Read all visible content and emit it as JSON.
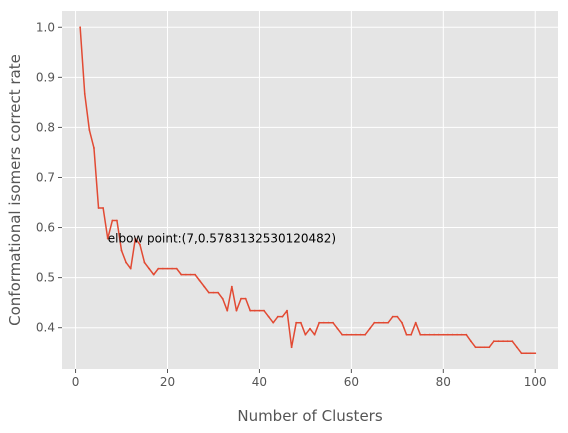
{
  "chart_data": {
    "type": "line",
    "title": "",
    "xlabel": "Number of Clusters",
    "ylabel": "Conformational isomers correct rate",
    "xlim": [
      -2.95,
      104.95
    ],
    "ylim": [
      0.3175,
      1.0325
    ],
    "xticks": [
      0,
      20,
      40,
      60,
      80,
      100
    ],
    "yticks": [
      0.4,
      0.5,
      0.6,
      0.7,
      0.8,
      0.9,
      1.0
    ],
    "ytick_labels": [
      "0.4",
      "0.5",
      "0.6",
      "0.7",
      "0.8",
      "0.9",
      "1.0"
    ],
    "grid": true,
    "style": "ggplot",
    "series": [
      {
        "color": "#E24A33",
        "x": [
          1,
          2,
          3,
          4,
          5,
          6,
          7,
          8,
          9,
          10,
          11,
          12,
          13,
          14,
          15,
          16,
          17,
          18,
          19,
          20,
          21,
          22,
          23,
          24,
          25,
          26,
          27,
          28,
          29,
          30,
          31,
          32,
          33,
          34,
          35,
          36,
          37,
          38,
          39,
          40,
          41,
          42,
          43,
          44,
          45,
          46,
          47,
          48,
          49,
          50,
          51,
          52,
          53,
          54,
          55,
          56,
          57,
          58,
          59,
          60,
          61,
          62,
          63,
          64,
          65,
          66,
          67,
          68,
          69,
          70,
          71,
          72,
          73,
          74,
          75,
          76,
          77,
          78,
          79,
          80,
          81,
          82,
          83,
          84,
          85,
          86,
          87,
          88,
          89,
          90,
          91,
          92,
          93,
          94,
          95,
          96,
          97,
          98,
          99,
          100
        ],
        "y": [
          1.0,
          0.867,
          0.795,
          0.759,
          0.639,
          0.639,
          0.578,
          0.614,
          0.614,
          0.554,
          0.53,
          0.518,
          0.578,
          0.566,
          0.53,
          0.518,
          0.506,
          0.518,
          0.518,
          0.518,
          0.518,
          0.518,
          0.506,
          0.506,
          0.506,
          0.506,
          0.494,
          0.482,
          0.47,
          0.47,
          0.47,
          0.458,
          0.434,
          0.482,
          0.434,
          0.458,
          0.458,
          0.434,
          0.434,
          0.434,
          0.434,
          0.422,
          0.41,
          0.422,
          0.422,
          0.434,
          0.361,
          0.41,
          0.41,
          0.386,
          0.398,
          0.386,
          0.41,
          0.41,
          0.41,
          0.41,
          0.398,
          0.386,
          0.386,
          0.386,
          0.386,
          0.386,
          0.386,
          0.398,
          0.41,
          0.41,
          0.41,
          0.41,
          0.422,
          0.422,
          0.41,
          0.386,
          0.386,
          0.41,
          0.386,
          0.386,
          0.386,
          0.386,
          0.386,
          0.386,
          0.386,
          0.386,
          0.386,
          0.386,
          0.386,
          0.373,
          0.361,
          0.361,
          0.361,
          0.361,
          0.373,
          0.373,
          0.373,
          0.373,
          0.373,
          0.361,
          0.349,
          0.349,
          0.349,
          0.349
        ]
      }
    ],
    "annotations": [
      {
        "text": "elbow point:(7,0.5783132530120482)",
        "x": 7,
        "y": 0.5783132530120482
      }
    ],
    "colors": {
      "plot_background": "#E5E5E5",
      "grid": "#FFFFFF",
      "text": "#555555"
    }
  }
}
